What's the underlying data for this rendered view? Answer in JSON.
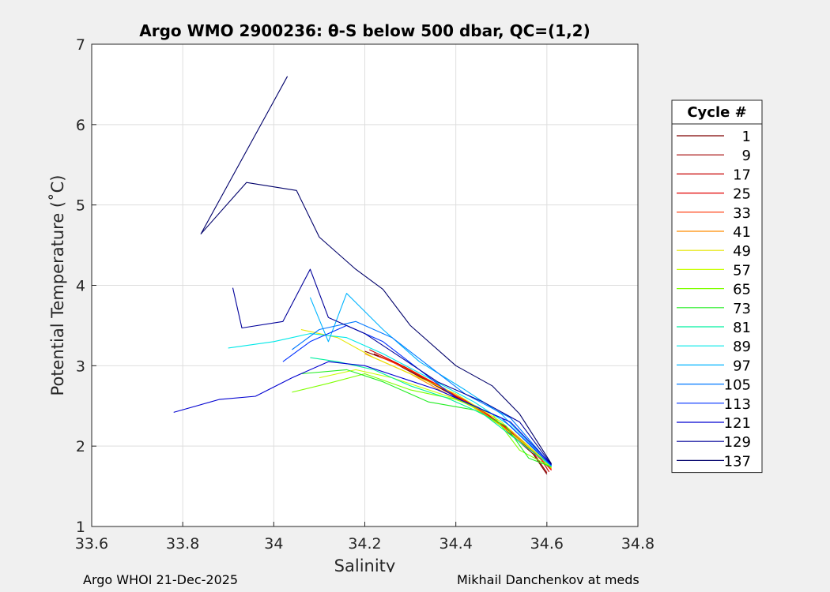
{
  "chart_data": {
    "type": "line",
    "title": "Argo WMO 2900236: θ-S below 500 dbar,  QC=(1,2)",
    "xlabel": "Salinity",
    "ylabel": "Potential Temperature (˚C)",
    "xlim": [
      33.6,
      34.8
    ],
    "ylim": [
      1,
      7
    ],
    "xticks": [
      "33.6",
      "33.8",
      "34",
      "34.2",
      "34.4",
      "34.6",
      "34.8"
    ],
    "yticks": [
      "1",
      "2",
      "3",
      "4",
      "5",
      "6",
      "7"
    ],
    "grid": true,
    "legend_placement": "right-outside",
    "legend_title": "Cycle #",
    "series": [
      {
        "name": "1",
        "color": "#7f0000",
        "x": [
          34.2,
          34.26,
          34.34,
          34.42,
          34.5,
          34.57,
          34.6
        ],
        "y": [
          3.18,
          3.05,
          2.8,
          2.55,
          2.25,
          1.9,
          1.65
        ]
      },
      {
        "name": "9",
        "color": "#a00000",
        "x": [
          34.22,
          34.28,
          34.35,
          34.43,
          34.51,
          34.57,
          34.6
        ],
        "y": [
          3.15,
          3.0,
          2.78,
          2.52,
          2.22,
          1.92,
          1.67
        ]
      },
      {
        "name": "17",
        "color": "#c80000",
        "x": [
          34.21,
          34.29,
          34.36,
          34.44,
          34.52,
          34.58,
          34.605
        ],
        "y": [
          3.2,
          2.98,
          2.75,
          2.5,
          2.2,
          1.9,
          1.68
        ]
      },
      {
        "name": "25",
        "color": "#e10000",
        "x": [
          34.24,
          34.3,
          34.37,
          34.45,
          34.52,
          34.58,
          34.61
        ],
        "y": [
          3.1,
          2.95,
          2.72,
          2.48,
          2.18,
          1.88,
          1.7
        ]
      },
      {
        "name": "33",
        "color": "#ff3000",
        "x": [
          34.23,
          34.31,
          34.38,
          34.45,
          34.53,
          34.58,
          34.61
        ],
        "y": [
          3.12,
          2.92,
          2.7,
          2.45,
          2.15,
          1.87,
          1.71
        ]
      },
      {
        "name": "41",
        "color": "#ff8c00",
        "x": [
          34.2,
          34.3,
          34.37,
          34.46,
          34.53,
          34.59,
          34.61
        ],
        "y": [
          3.15,
          2.9,
          2.68,
          2.42,
          2.12,
          1.85,
          1.72
        ]
      },
      {
        "name": "49",
        "color": "#e6e600",
        "x": [
          34.06,
          34.14,
          34.22,
          34.3,
          34.4,
          34.5,
          34.57,
          34.61
        ],
        "y": [
          3.45,
          3.35,
          3.1,
          2.9,
          2.65,
          2.3,
          1.95,
          1.73
        ]
      },
      {
        "name": "57",
        "color": "#c8ff00",
        "x": [
          34.1,
          34.18,
          34.26,
          34.34,
          34.42,
          34.5,
          34.58,
          34.61
        ],
        "y": [
          2.85,
          2.95,
          2.85,
          2.7,
          2.55,
          2.25,
          1.9,
          1.73
        ]
      },
      {
        "name": "65",
        "color": "#7fff00",
        "x": [
          34.04,
          34.12,
          34.2,
          34.3,
          34.4,
          34.48,
          34.54,
          34.61
        ],
        "y": [
          2.67,
          2.78,
          2.9,
          2.7,
          2.58,
          2.4,
          1.95,
          1.74
        ]
      },
      {
        "name": "73",
        "color": "#22ee22",
        "x": [
          34.06,
          34.16,
          34.24,
          34.34,
          34.44,
          34.51,
          34.56,
          34.61
        ],
        "y": [
          2.9,
          2.95,
          2.8,
          2.55,
          2.45,
          2.25,
          1.85,
          1.74
        ]
      },
      {
        "name": "81",
        "color": "#00f0a0",
        "x": [
          34.08,
          34.14,
          34.22,
          34.3,
          34.38,
          34.46,
          34.54,
          34.61
        ],
        "y": [
          3.1,
          3.05,
          2.95,
          2.75,
          2.6,
          2.4,
          2.05,
          1.75
        ]
      },
      {
        "name": "89",
        "color": "#00e8e8",
        "x": [
          33.9,
          34.0,
          34.08,
          34.16,
          34.24,
          34.34,
          34.44,
          34.52,
          34.61
        ],
        "y": [
          3.22,
          3.3,
          3.4,
          3.35,
          3.15,
          2.85,
          2.55,
          2.25,
          1.75
        ]
      },
      {
        "name": "97",
        "color": "#00b4ff",
        "x": [
          34.08,
          34.12,
          34.16,
          34.24,
          34.32,
          34.42,
          34.5,
          34.61
        ],
        "y": [
          3.85,
          3.3,
          3.9,
          3.45,
          3.05,
          2.7,
          2.4,
          1.75
        ]
      },
      {
        "name": "105",
        "color": "#0078ff",
        "x": [
          34.04,
          34.1,
          34.18,
          34.26,
          34.34,
          34.42,
          34.52,
          34.61
        ],
        "y": [
          3.2,
          3.45,
          3.55,
          3.35,
          3.0,
          2.65,
          2.35,
          1.76
        ]
      },
      {
        "name": "113",
        "color": "#0030ff",
        "x": [
          34.02,
          34.08,
          34.16,
          34.24,
          34.32,
          34.4,
          34.5,
          34.61
        ],
        "y": [
          3.05,
          3.3,
          3.5,
          3.3,
          2.95,
          2.6,
          2.35,
          1.76
        ]
      },
      {
        "name": "121",
        "color": "#0000d0",
        "x": [
          33.78,
          33.88,
          33.96,
          34.04,
          34.12,
          34.2,
          34.28,
          34.36,
          34.44,
          34.52,
          34.61
        ],
        "y": [
          2.42,
          2.58,
          2.62,
          2.85,
          3.05,
          3.0,
          2.85,
          2.7,
          2.5,
          2.3,
          1.77
        ]
      },
      {
        "name": "129",
        "color": "#00009a",
        "x": [
          33.91,
          33.93,
          34.02,
          34.08,
          34.12,
          34.2,
          34.28,
          34.36,
          34.46,
          34.54,
          34.61
        ],
        "y": [
          3.97,
          3.47,
          3.55,
          4.2,
          3.6,
          3.4,
          3.1,
          2.8,
          2.55,
          2.3,
          1.77
        ]
      },
      {
        "name": "137",
        "color": "#00006a",
        "x": [
          34.03,
          33.84,
          33.94,
          34.05,
          34.1,
          34.18,
          34.24,
          34.3,
          34.4,
          34.48,
          34.54,
          34.61
        ],
        "y": [
          6.6,
          4.64,
          5.28,
          5.18,
          4.6,
          4.2,
          3.95,
          3.5,
          3.0,
          2.75,
          2.4,
          1.78
        ]
      }
    ]
  },
  "footer": {
    "left": "Argo WHOI 21-Dec-2025",
    "right": "Mikhail Danchenkov at meds"
  }
}
